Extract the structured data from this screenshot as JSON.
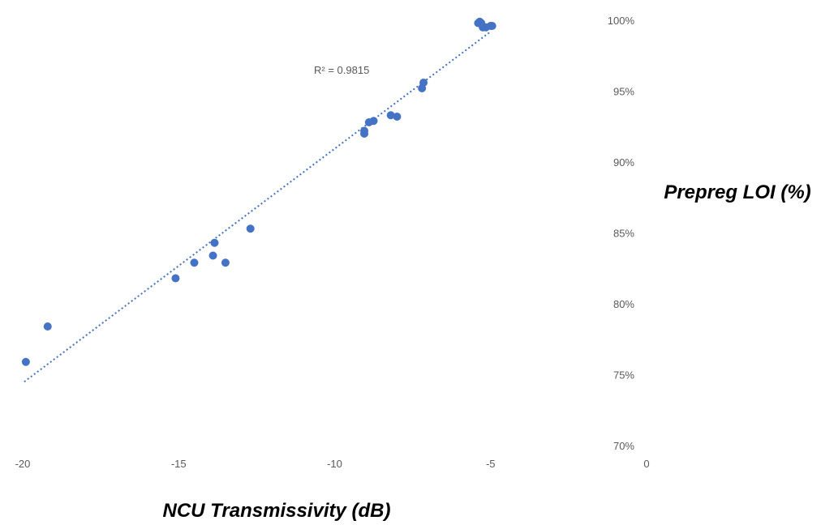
{
  "chart_data": {
    "type": "scatter",
    "xlabel": "NCU Transmissivity (dB)",
    "ylabel": "Prepreg LOI (%)",
    "xlim": [
      -20,
      0
    ],
    "ylim": [
      70,
      100
    ],
    "x_ticks": [
      "-20",
      "-15",
      "-10",
      "-5",
      "0"
    ],
    "x_tick_values": [
      -20,
      -15,
      -10,
      -5,
      0
    ],
    "y_ticks": [
      "70%",
      "75%",
      "80%",
      "85%",
      "90%",
      "95%",
      "100%"
    ],
    "y_tick_values": [
      70,
      75,
      80,
      85,
      90,
      95,
      100
    ],
    "y_axis_position": "right",
    "grid": false,
    "legend": "none",
    "series": [
      {
        "color": "#4472c4",
        "points": [
          {
            "x": -19.9,
            "y": 75.9
          },
          {
            "x": -19.2,
            "y": 78.4
          },
          {
            "x": -15.1,
            "y": 81.8
          },
          {
            "x": -14.5,
            "y": 82.9
          },
          {
            "x": -13.9,
            "y": 83.4
          },
          {
            "x": -13.85,
            "y": 84.3
          },
          {
            "x": -13.5,
            "y": 82.9
          },
          {
            "x": -12.7,
            "y": 85.3
          },
          {
            "x": -9.05,
            "y": 92.0
          },
          {
            "x": -9.05,
            "y": 92.2
          },
          {
            "x": -8.9,
            "y": 92.8
          },
          {
            "x": -8.75,
            "y": 92.9
          },
          {
            "x": -8.2,
            "y": 93.3
          },
          {
            "x": -8.0,
            "y": 93.2
          },
          {
            "x": -7.2,
            "y": 95.2
          },
          {
            "x": -7.15,
            "y": 95.6
          },
          {
            "x": -5.4,
            "y": 99.8
          },
          {
            "x": -5.35,
            "y": 99.9
          },
          {
            "x": -5.3,
            "y": 99.8
          },
          {
            "x": -5.25,
            "y": 99.5
          },
          {
            "x": -5.15,
            "y": 99.5
          },
          {
            "x": -5.0,
            "y": 99.6
          },
          {
            "x": -4.95,
            "y": 99.6
          }
        ]
      }
    ],
    "trendline": {
      "type": "linear",
      "style": "dotted",
      "color": "#4472c4",
      "from": {
        "x": -19.95,
        "y": 74.5
      },
      "to": {
        "x": -5.0,
        "y": 99.2
      },
      "label": "R² = 0.9815"
    }
  }
}
